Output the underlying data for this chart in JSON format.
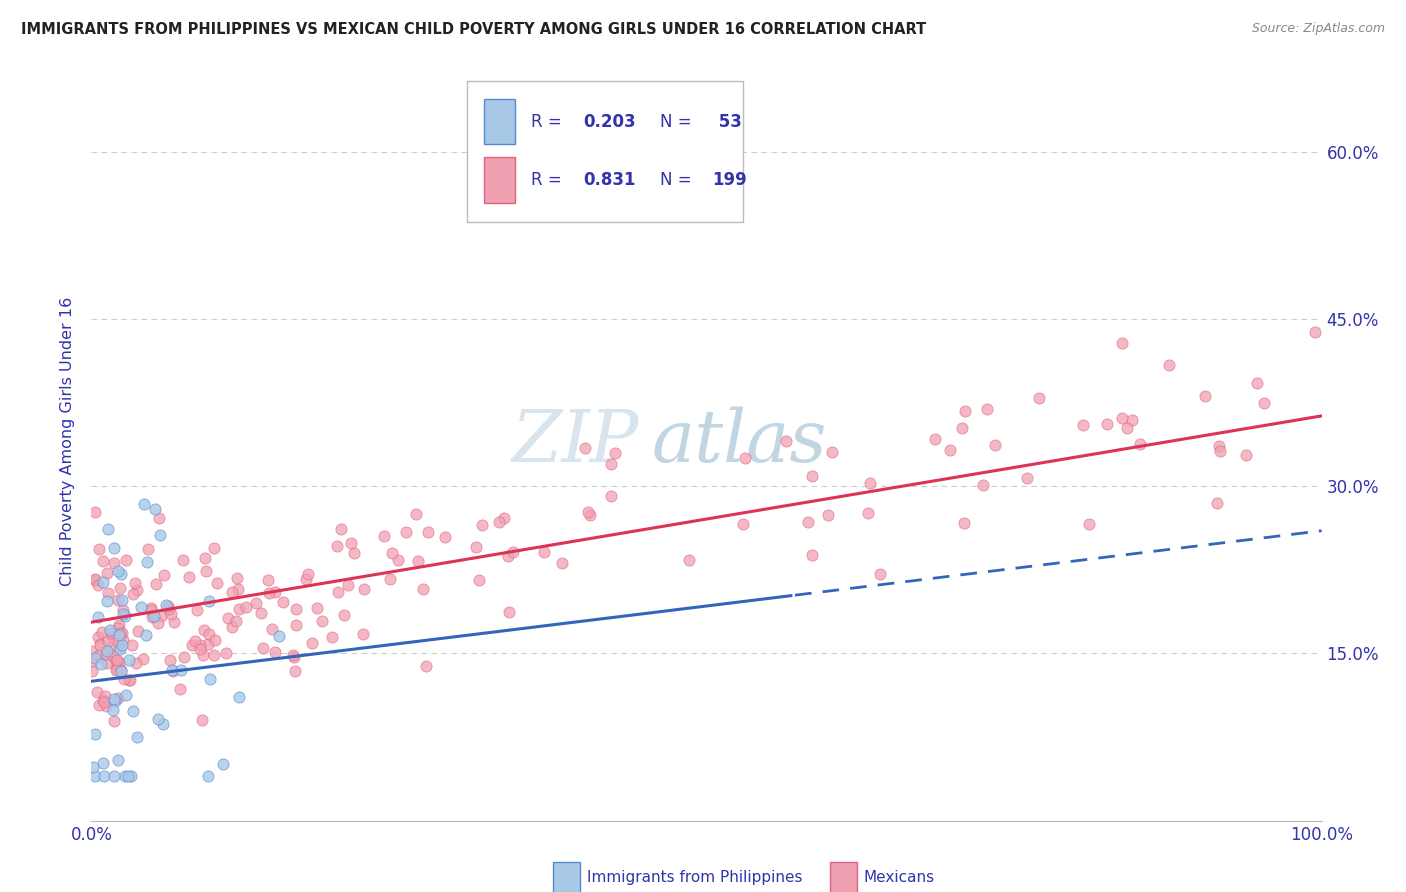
{
  "title": "IMMIGRANTS FROM PHILIPPINES VS MEXICAN CHILD POVERTY AMONG GIRLS UNDER 16 CORRELATION CHART",
  "source": "Source: ZipAtlas.com",
  "ylabel": "Child Poverty Among Girls Under 16",
  "ytick_values": [
    0.15,
    0.3,
    0.45,
    0.6
  ],
  "ytick_labels": [
    "15.0%",
    "30.0%",
    "45.0%",
    "60.0%"
  ],
  "xtick_values": [
    0.0,
    1.0
  ],
  "xtick_labels": [
    "0.0%",
    "100.0%"
  ],
  "xlim": [
    0.0,
    1.0
  ],
  "ylim": [
    0.0,
    0.68
  ],
  "watermark_zip": "ZIP",
  "watermark_atlas": "atlas",
  "legend_r1": "R =",
  "legend_v1": "0.203",
  "legend_n1": "N =",
  "legend_nv1": " 53",
  "legend_r2": "R =",
  "legend_v2": "0.831",
  "legend_n2": "N =",
  "legend_nv2": "199",
  "blue_scatter_fill": "#a8c8e8",
  "blue_scatter_edge": "#5588cc",
  "pink_scatter_fill": "#f0a0b0",
  "pink_scatter_edge": "#e06080",
  "trend_blue_color": "#3366bb",
  "trend_pink_color": "#dd3355",
  "background_color": "#ffffff",
  "grid_color": "#cccccc",
  "title_color": "#222222",
  "axis_label_color": "#3333aa",
  "legend_text_color": "#3333aa",
  "legend_value_color": "#3333aa",
  "source_color": "#888888",
  "bottom_legend_labels": [
    "Immigrants from Philippines",
    "Mexicans"
  ],
  "watermark_color": "#c8d8e8",
  "watermark_alpha": 0.6
}
